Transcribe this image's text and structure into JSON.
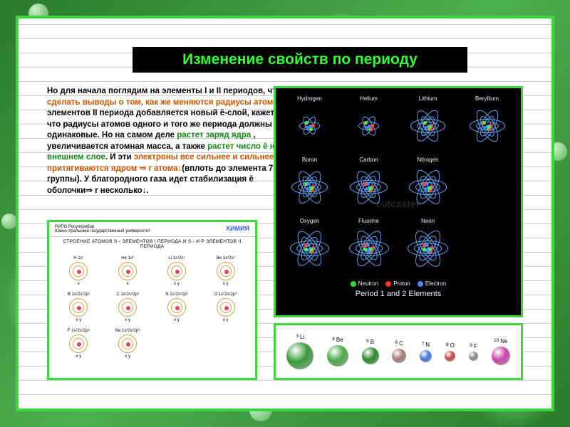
{
  "title": "Изменение свойств по периоду",
  "text": {
    "s1": "Но для начала поглядим на элементы I и II периодов, чтобы ",
    "s2": "сделать выводы о том, как же меняются радиусы атомов",
    "s3": ". У элементов II периода добавляется новый ē-слой, кажется, что радиусы атомов одного и того же периода должны быть одинаковые. Но на самом деле ",
    "s4": "растет заряд ядра",
    "s5": " , увеличивается атомная масса, а также ",
    "s6": "растет число ē на внешнем слое",
    "s7": ". И эти ",
    "s8": "электроны все сильнее и сильнее притягиваются ядром ⇒ r атома↓",
    "s9": "(вплоть до элемента 7 группы). У благородного газа идет стабилизация ē оболочки⇒ r несколько↓.",
    "color_black": "#000000",
    "color_orange": "#cc5500",
    "color_green": "#118811"
  },
  "atoms": {
    "caption": "Period 1 and 2 Elements",
    "watermark": "cutcaster",
    "legend": [
      {
        "label": "Neutron",
        "color": "#33dd33"
      },
      {
        "label": "Proton",
        "color": "#ff3333"
      },
      {
        "label": "Electron",
        "color": "#4488ff"
      }
    ],
    "elements": [
      {
        "name": "Hydrogen",
        "shells": 1,
        "size": 14
      },
      {
        "name": "Helium",
        "shells": 1,
        "size": 16
      },
      {
        "name": "Lithium",
        "shells": 2,
        "size": 18
      },
      {
        "name": "Beryllium",
        "shells": 2,
        "size": 20
      },
      {
        "name": "Boron",
        "shells": 2,
        "size": 22
      },
      {
        "name": "Carbon",
        "shells": 2,
        "size": 24
      },
      {
        "name": "Nitrogen",
        "shells": 2,
        "size": 26
      },
      {
        "name": "",
        "shells": 0,
        "size": 0
      },
      {
        "name": "Oxygen",
        "shells": 2,
        "size": 28
      },
      {
        "name": "Fluorine",
        "shells": 2,
        "size": 30
      },
      {
        "name": "Neon",
        "shells": 2,
        "size": 32
      },
      {
        "name": "",
        "shells": 0,
        "size": 0
      }
    ]
  },
  "diagram": {
    "header_left_1": "РИПО Росучприбор",
    "header_left_2": "Южно-Уральский государственный университет",
    "header_right": "ХИМИЯ",
    "title": "СТРОЕНИЕ АТОМОВ S - ЭЛЕМЕНТОВ I ПЕРИОДА И S - И P ЭЛЕМЕНТОВ II ПЕРИОДА",
    "cells": [
      {
        "top": "H 1s¹",
        "bottom": "x"
      },
      {
        "top": "He 1s²",
        "bottom": "x"
      },
      {
        "top": "Li 1s²2s¹",
        "bottom": "x y"
      },
      {
        "top": "Be 1s²2s²",
        "bottom": "x y"
      },
      {
        "top": "B 1s²2s²2p¹",
        "bottom": "x y"
      },
      {
        "top": "C 1s²2s²2p²",
        "bottom": "x y"
      },
      {
        "top": "N 1s²2s²2p³",
        "bottom": "x y"
      },
      {
        "top": "O 1s²2s²2p⁴",
        "bottom": "x y"
      },
      {
        "top": "F 1s²2s²2p⁵",
        "bottom": "x y"
      },
      {
        "top": "Ne 1s²2s²2p⁶",
        "bottom": "x y"
      },
      {
        "top": "",
        "bottom": ""
      },
      {
        "top": "",
        "bottom": ""
      }
    ]
  },
  "radius": {
    "elements": [
      {
        "num": "3",
        "sym": "Li",
        "color": "#3a9a3a",
        "size": 38
      },
      {
        "num": "4",
        "sym": "Be",
        "color": "#4aaa4a",
        "size": 30
      },
      {
        "num": "5",
        "sym": "B",
        "color": "#2a8a2a",
        "size": 24
      },
      {
        "num": "6",
        "sym": "C",
        "color": "#aa7777",
        "size": 20
      },
      {
        "num": "7",
        "sym": "N",
        "color": "#4477dd",
        "size": 17
      },
      {
        "num": "8",
        "sym": "O",
        "color": "#cc4444",
        "size": 15
      },
      {
        "num": "9",
        "sym": "F",
        "color": "#888888",
        "size": 13
      },
      {
        "num": "10",
        "sym": "Ne",
        "color": "#cc44aa",
        "size": 26
      }
    ]
  }
}
